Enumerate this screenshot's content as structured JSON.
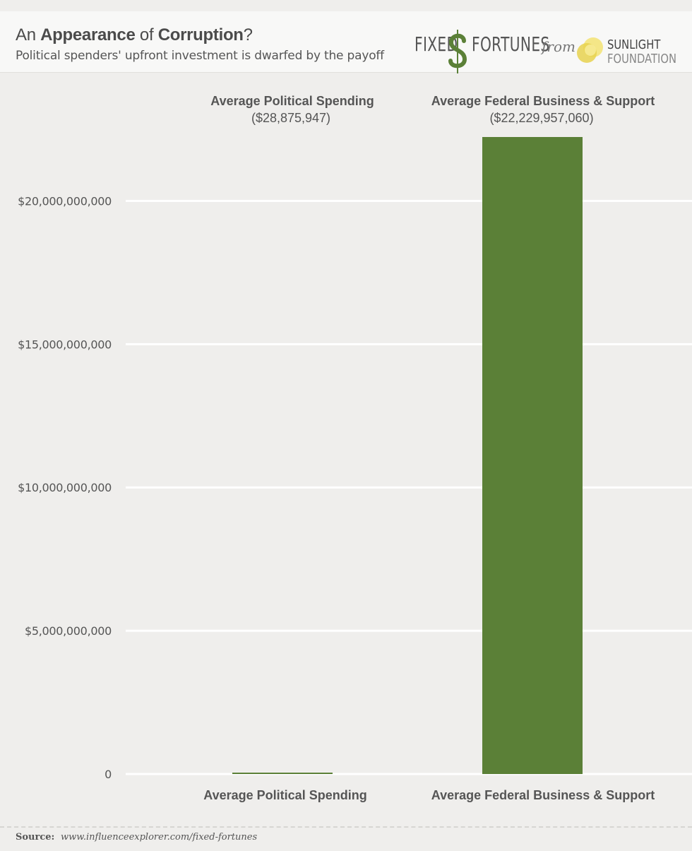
{
  "header": {
    "title_pre": "An ",
    "title_bold1": "Appearance",
    "title_mid": " of ",
    "title_bold2": "Corruption",
    "title_post": "?",
    "subtitle": "Political spenders' upfront investment is dwarfed by the payoff"
  },
  "logo": {
    "fixed": "FIXED",
    "fortunes": "FORTUNES",
    "from": "from",
    "org_line1": "SUNLIGHT",
    "org_line2": "FOUNDATION"
  },
  "source": {
    "label": "Source:",
    "url": "www.influenceexplorer.com/fixed-fortunes"
  },
  "colors": {
    "bar": "#5b8037",
    "grid": "#ffffff",
    "background": "#efeeec"
  },
  "chart_data": {
    "type": "bar",
    "categories": [
      "Average Political Spending",
      "Average Federal Business & Support"
    ],
    "values": [
      28875947,
      22229957060
    ],
    "value_labels": [
      "($28,875,947)",
      "($22,229,957,060)"
    ],
    "yticks": [
      0,
      5000000000,
      10000000000,
      15000000000,
      20000000000
    ],
    "ytick_labels": [
      "0",
      "$5,000,000,000",
      "$10,000,000,000",
      "$15,000,000,000",
      "$20,000,000,000"
    ],
    "ylim": [
      0,
      22229957060
    ],
    "grid": true,
    "legend": "none"
  }
}
